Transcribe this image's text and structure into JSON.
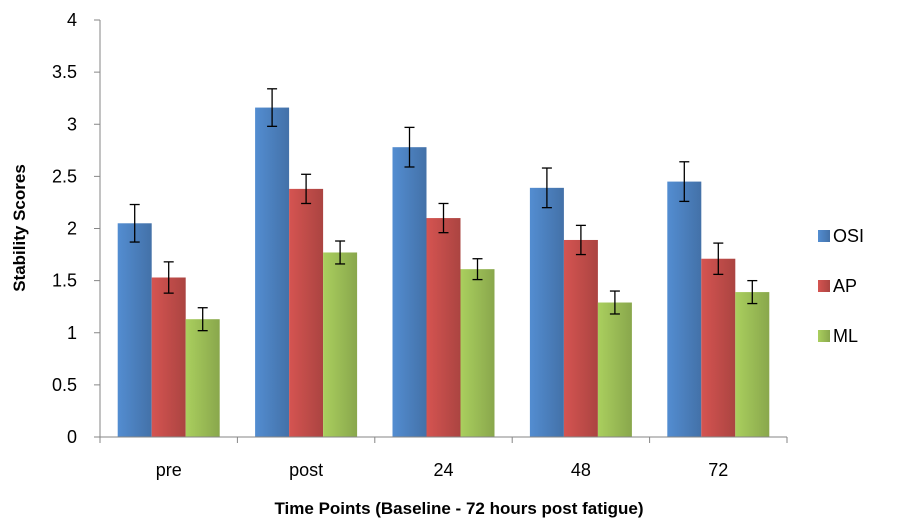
{
  "chart_data": {
    "type": "bar",
    "title": "",
    "xlabel": "Time Points (Baseline - 72 hours post fatigue)",
    "ylabel": "Stability Scores",
    "categories": [
      "pre",
      "post",
      "24",
      "48",
      "72"
    ],
    "ylim": [
      0,
      4
    ],
    "yticks": [
      "0",
      "0.5",
      "1",
      "1.5",
      "2",
      "2.5",
      "3",
      "3.5",
      "4"
    ],
    "grid": false,
    "legend_position": "right",
    "series": [
      {
        "name": "OSI",
        "color": "#4a7ebb",
        "values": [
          2.05,
          3.16,
          2.78,
          2.39,
          2.45
        ],
        "errors": [
          0.18,
          0.18,
          0.19,
          0.19,
          0.19
        ]
      },
      {
        "name": "AP",
        "color": "#be4b48",
        "values": [
          1.53,
          2.38,
          2.1,
          1.89,
          1.71
        ],
        "errors": [
          0.15,
          0.14,
          0.14,
          0.14,
          0.15
        ]
      },
      {
        "name": "ML",
        "color": "#98b954",
        "values": [
          1.13,
          1.77,
          1.61,
          1.29,
          1.39
        ],
        "errors": [
          0.11,
          0.11,
          0.1,
          0.11,
          0.11
        ]
      }
    ]
  }
}
